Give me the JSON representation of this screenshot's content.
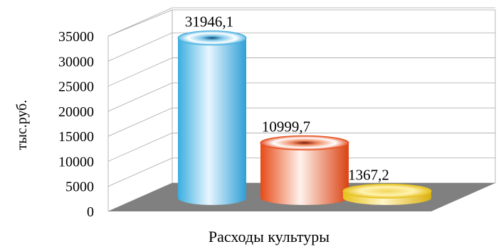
{
  "chart_data": {
    "type": "bar",
    "style": "3d-cylinder",
    "categories": [
      "Расходы культуры"
    ],
    "xlabel": "Расходы культуры",
    "ylabel": "тыс.руб.",
    "ylim": [
      0,
      35000
    ],
    "yticks": [
      {
        "value": 0,
        "label": "0"
      },
      {
        "value": 5000,
        "label": "5000"
      },
      {
        "value": 10000,
        "label": "10000"
      },
      {
        "value": 15000,
        "label": "15000"
      },
      {
        "value": 20000,
        "label": "20000"
      },
      {
        "value": 25000,
        "label": "25000"
      },
      {
        "value": 30000,
        "label": "30000"
      },
      {
        "value": 35000,
        "label": "35000"
      }
    ],
    "grid": true,
    "series": [
      {
        "value": 31946.1,
        "label": "31946,1",
        "color": "#3aaee0"
      },
      {
        "value": 10999.7,
        "label": "10999,7",
        "color": "#e64a16"
      },
      {
        "value": 1367.2,
        "label": "1367,2",
        "color": "#e8c21a"
      }
    ]
  }
}
